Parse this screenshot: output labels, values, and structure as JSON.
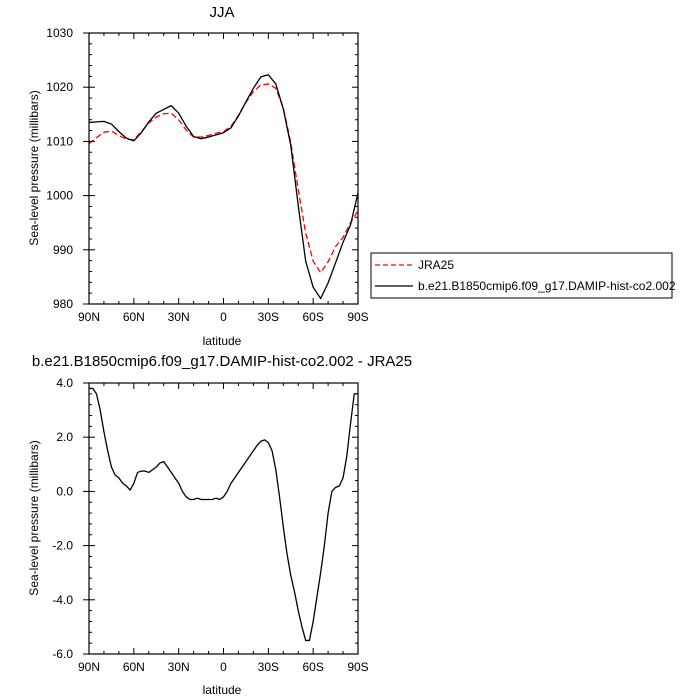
{
  "chart_data": [
    {
      "type": "line",
      "title": "JJA",
      "xlabel": "latitude",
      "ylabel": "Sea-level pressure (millibars)",
      "xlim": [
        90,
        -90
      ],
      "ylim": [
        980,
        1030
      ],
      "x_ticks": [
        90,
        60,
        30,
        0,
        -30,
        -60,
        -90
      ],
      "x_tick_labels": [
        "90N",
        "60N",
        "30N",
        "0",
        "30S",
        "60S",
        "90S"
      ],
      "y_ticks": [
        980,
        990,
        1000,
        1010,
        1020,
        1030
      ],
      "y_tick_labels": [
        "980",
        "990",
        "1000",
        "1010",
        "1020",
        "1030"
      ],
      "legend": {
        "placement": "right",
        "entries": [
          "JRA25",
          "b.e21.B1850cmip6.f09_g17.DAMIP-hist-co2.002"
        ]
      },
      "series": [
        {
          "name": "JRA25",
          "color": "#ff0000",
          "dash": "dashed",
          "x": [
            90,
            85,
            80,
            75,
            70,
            65,
            60,
            55,
            50,
            45,
            40,
            35,
            30,
            25,
            20,
            15,
            10,
            5,
            0,
            -5,
            -10,
            -15,
            -20,
            -25,
            -30,
            -35,
            -40,
            -45,
            -50,
            -55,
            -60,
            -65,
            -70,
            -75,
            -80,
            -85,
            -90
          ],
          "y": [
            1009.6,
            1010.7,
            1011.7,
            1011.9,
            1011.1,
            1010.4,
            1010.3,
            1011.8,
            1013.4,
            1014.5,
            1015.1,
            1015.2,
            1014.0,
            1012.1,
            1010.8,
            1010.8,
            1011.1,
            1011.5,
            1011.8,
            1012.8,
            1014.8,
            1017.2,
            1019.2,
            1020.4,
            1020.6,
            1019.8,
            1016.2,
            1009.8,
            1001.1,
            993.1,
            987.9,
            985.8,
            987.8,
            990.6,
            992.3,
            995.0,
            997.2
          ]
        },
        {
          "name": "b.e21.B1850cmip6.f09_g17.DAMIP-hist-co2.002",
          "color": "#000000",
          "dash": "solid",
          "x": [
            90,
            85,
            80,
            75,
            70,
            65,
            60,
            55,
            50,
            45,
            40,
            35,
            30,
            25,
            20,
            15,
            10,
            5,
            0,
            -5,
            -10,
            -15,
            -20,
            -25,
            -30,
            -35,
            -40,
            -45,
            -50,
            -55,
            -60,
            -65,
            -70,
            -75,
            -80,
            -85,
            -90
          ],
          "y": [
            1013.5,
            1013.6,
            1013.7,
            1013.2,
            1011.8,
            1010.6,
            1010.1,
            1011.6,
            1013.6,
            1015.2,
            1015.9,
            1016.6,
            1015.2,
            1012.8,
            1010.9,
            1010.5,
            1010.8,
            1011.2,
            1011.6,
            1012.5,
            1014.7,
            1017.3,
            1019.8,
            1021.9,
            1022.3,
            1020.6,
            1016.0,
            1009.3,
            998.2,
            987.9,
            983.1,
            981.0,
            983.9,
            987.6,
            991.4,
            994.6,
            1000.5
          ]
        }
      ]
    },
    {
      "type": "line",
      "title": "b.e21.B1850cmip6.f09_g17.DAMIP-hist-co2.002 - JRA25",
      "xlabel": "latitude",
      "ylabel": "Sea-level pressure (millibars)",
      "xlim": [
        90,
        -90
      ],
      "ylim": [
        -6.0,
        4.0
      ],
      "x_ticks": [
        90,
        60,
        30,
        0,
        -30,
        -60,
        -90
      ],
      "x_tick_labels": [
        "90N",
        "60N",
        "30N",
        "0",
        "30S",
        "60S",
        "90S"
      ],
      "y_ticks": [
        -6.0,
        -4.0,
        -2.0,
        0.0,
        2.0,
        4.0
      ],
      "y_tick_labels": [
        "-6.0",
        "-4.0",
        "-2.0",
        "0.0",
        "2.0",
        "4.0"
      ],
      "series": [
        {
          "color": "#000000",
          "dash": "solid",
          "x": [
            90,
            87.5,
            85,
            82.5,
            80,
            77.5,
            75,
            72.5,
            70,
            67.5,
            65,
            62.5,
            60,
            57.5,
            55,
            52.5,
            50,
            47.5,
            45,
            42.5,
            40,
            37.5,
            35,
            32.5,
            30,
            27.5,
            25,
            22.5,
            20,
            17.5,
            15,
            12.5,
            10,
            7.5,
            5,
            2.5,
            0,
            -2.5,
            -5,
            -7.5,
            -10,
            -12.5,
            -15,
            -17.5,
            -20,
            -22.5,
            -25,
            -27.5,
            -30,
            -32.5,
            -35,
            -37.5,
            -40,
            -42.5,
            -45,
            -47.5,
            -50,
            -52.5,
            -55,
            -57.5,
            -60,
            -62.5,
            -65,
            -67.5,
            -70,
            -72.5,
            -75,
            -77.5,
            -80,
            -82.5,
            -85,
            -87.5,
            -90
          ],
          "y": [
            3.8,
            3.8,
            3.6,
            3.0,
            2.2,
            1.5,
            0.9,
            0.6,
            0.5,
            0.3,
            0.2,
            0.05,
            0.3,
            0.7,
            0.75,
            0.75,
            0.7,
            0.8,
            0.9,
            1.05,
            1.1,
            0.9,
            0.7,
            0.5,
            0.3,
            0.0,
            -0.2,
            -0.3,
            -0.3,
            -0.25,
            -0.3,
            -0.3,
            -0.3,
            -0.3,
            -0.25,
            -0.3,
            -0.2,
            0.0,
            0.3,
            0.5,
            0.7,
            0.9,
            1.1,
            1.3,
            1.5,
            1.7,
            1.85,
            1.9,
            1.8,
            1.5,
            0.8,
            -0.2,
            -1.3,
            -2.3,
            -3.1,
            -3.7,
            -4.4,
            -5.0,
            -5.5,
            -5.5,
            -4.8,
            -3.9,
            -3.0,
            -2.0,
            -0.8,
            0.0,
            0.15,
            0.2,
            0.5,
            1.3,
            2.5,
            3.6,
            3.6
          ]
        }
      ]
    }
  ]
}
